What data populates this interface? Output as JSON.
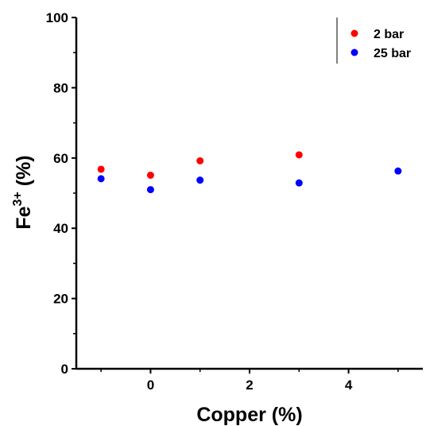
{
  "chart_data": {
    "type": "scatter",
    "xlabel": "Copper (%)",
    "ylabel": {
      "base": "Fe",
      "sup": "3+",
      "rest": " (%)"
    },
    "xlim": [
      -1.5,
      5.5
    ],
    "ylim": [
      0,
      100
    ],
    "xticks": [
      0,
      2,
      4
    ],
    "yticks": [
      0,
      20,
      40,
      60,
      80,
      100
    ],
    "grid": false,
    "legend_position": "top-right",
    "series": [
      {
        "name": "2 bar",
        "color": "#ff0000",
        "x": [
          -1,
          0,
          1,
          3
        ],
        "y": [
          56.8,
          55.1,
          59.2,
          60.9
        ]
      },
      {
        "name": "25 bar",
        "color": "#0000ff",
        "x": [
          -1,
          0,
          1,
          3,
          5
        ],
        "y": [
          54.1,
          51.0,
          53.7,
          52.9,
          56.3
        ]
      }
    ]
  }
}
